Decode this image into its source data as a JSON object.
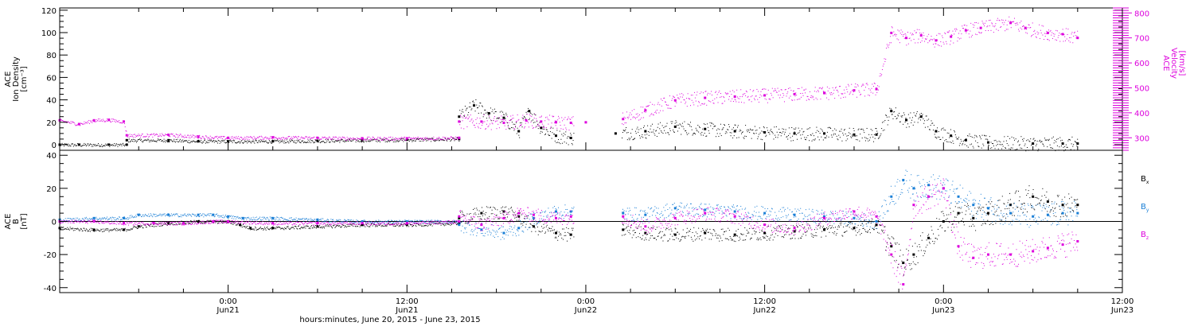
{
  "xaxis": {
    "ticks": [
      {
        "t": 0,
        "l1": "0:00",
        "l2": "Jun21"
      },
      {
        "t": 12,
        "l1": "12:00",
        "l2": "Jun21"
      },
      {
        "t": 24,
        "l1": "0:00",
        "l2": "Jun22"
      },
      {
        "t": 36,
        "l1": "12:00",
        "l2": "Jun22"
      },
      {
        "t": 48,
        "l1": "0:00",
        "l2": "Jun23"
      },
      {
        "t": 60,
        "l1": "12:00",
        "l2": "Jun23"
      }
    ],
    "title": "hours:minutes, June 20, 2015 - June 23, 2015"
  },
  "colors": {
    "black": "#000000",
    "magenta": "#dd00dd",
    "blue": "#1a7fd6"
  },
  "chart_data": [
    {
      "type": "scatter",
      "ylabel_lines": [
        "ACE",
        "Ion Density",
        "[cm⁻³]"
      ],
      "ylim": [
        -5,
        122
      ],
      "yticks": [
        0,
        20,
        40,
        60,
        80,
        100,
        120
      ],
      "y2label_lines": [
        "ACE",
        "Velocity",
        "[km/s]"
      ],
      "y2lim": [
        250,
        820
      ],
      "y2ticks": [
        300,
        400,
        500,
        600,
        700,
        800
      ],
      "series": [
        {
          "axis": "left",
          "color": "black",
          "points": [
            [
              -11.3,
              0
            ],
            [
              -10,
              0
            ],
            [
              -8,
              0
            ],
            [
              -6.8,
              0
            ],
            [
              -6.8,
              4
            ],
            [
              -4,
              4
            ],
            [
              -2,
              3
            ],
            [
              0,
              3
            ],
            [
              3,
              3
            ],
            [
              6,
              3.5
            ],
            [
              9,
              4
            ],
            [
              12,
              4.5
            ],
            [
              15.5,
              5
            ],
            [
              15.5,
              25
            ],
            [
              16.5,
              35
            ],
            [
              17.5,
              28
            ],
            [
              18.5,
              24
            ],
            [
              19.5,
              12
            ],
            [
              20.2,
              30
            ],
            [
              21,
              15
            ],
            [
              22,
              8
            ],
            [
              23,
              6
            ],
            [
              26,
              10
            ],
            [
              28,
              12
            ],
            [
              30,
              16
            ],
            [
              32,
              14
            ],
            [
              34,
              12
            ],
            [
              36,
              11
            ],
            [
              38,
              10
            ],
            [
              40,
              10
            ],
            [
              42,
              9
            ],
            [
              43.5,
              9
            ],
            [
              44.5,
              30
            ],
            [
              45.5,
              22
            ],
            [
              46.5,
              25
            ],
            [
              47.5,
              12
            ],
            [
              48.5,
              8
            ],
            [
              49.5,
              4
            ],
            [
              51,
              2
            ],
            [
              54,
              1
            ],
            [
              56,
              1
            ],
            [
              57,
              1
            ]
          ]
        },
        {
          "axis": "right",
          "color": "magenta",
          "points": [
            [
              -11.3,
              370
            ],
            [
              -10,
              355
            ],
            [
              -9,
              370
            ],
            [
              -8,
              372
            ],
            [
              -7,
              365
            ],
            [
              -6.8,
              310
            ],
            [
              -4,
              312
            ],
            [
              -2,
              305
            ],
            [
              0,
              300
            ],
            [
              3,
              302
            ],
            [
              6,
              300
            ],
            [
              9,
              298
            ],
            [
              12,
              298
            ],
            [
              15.5,
              300
            ],
            [
              15.5,
              365
            ],
            [
              17,
              365
            ],
            [
              18.5,
              360
            ],
            [
              20,
              370
            ],
            [
              21,
              365
            ],
            [
              22,
              362
            ],
            [
              23,
              360
            ],
            [
              24,
              362
            ],
            [
              26.5,
              375
            ],
            [
              28,
              410
            ],
            [
              30,
              450
            ],
            [
              32,
              460
            ],
            [
              34,
              465
            ],
            [
              36,
              470
            ],
            [
              38,
              475
            ],
            [
              40,
              480
            ],
            [
              42,
              490
            ],
            [
              43.5,
              495
            ],
            [
              44.5,
              720
            ],
            [
              45.5,
              700
            ],
            [
              46.5,
              710
            ],
            [
              47.5,
              690
            ],
            [
              48.5,
              705
            ],
            [
              49.5,
              730
            ],
            [
              50.5,
              740
            ],
            [
              52.5,
              760
            ],
            [
              53.5,
              740
            ],
            [
              55,
              720
            ],
            [
              56,
              715
            ],
            [
              57,
              700
            ]
          ]
        }
      ]
    },
    {
      "type": "scatter",
      "ylabel_lines": [
        "ACE",
        "B",
        "[nT]"
      ],
      "ylim": [
        -43,
        43
      ],
      "yticks": [
        -40,
        -20,
        0,
        20,
        40
      ],
      "legend": [
        {
          "label": "Bx",
          "color": "black"
        },
        {
          "label": "By",
          "color": "blue"
        },
        {
          "label": "Bz",
          "color": "magenta"
        }
      ],
      "series": [
        {
          "name": "Bx",
          "color": "black",
          "points": [
            [
              -11.3,
              -4
            ],
            [
              -9,
              -5
            ],
            [
              -7,
              -5
            ],
            [
              -6,
              -3
            ],
            [
              -4,
              -1
            ],
            [
              -2,
              0
            ],
            [
              0,
              0
            ],
            [
              0.8,
              -2
            ],
            [
              1.5,
              -4
            ],
            [
              3,
              -4
            ],
            [
              6,
              -3
            ],
            [
              9,
              -2
            ],
            [
              12,
              -2
            ],
            [
              15.5,
              -1
            ],
            [
              15.5,
              2
            ],
            [
              17,
              5
            ],
            [
              18.5,
              6
            ],
            [
              19.5,
              3
            ],
            [
              20.5,
              -3
            ],
            [
              22,
              -7
            ],
            [
              23,
              -8
            ],
            [
              26.5,
              -5
            ],
            [
              28,
              -7
            ],
            [
              30,
              -8
            ],
            [
              32,
              -7
            ],
            [
              34,
              -8
            ],
            [
              36,
              -7
            ],
            [
              38,
              -6
            ],
            [
              40,
              -5
            ],
            [
              42,
              -4
            ],
            [
              43.5,
              -2
            ],
            [
              44.5,
              -15
            ],
            [
              45.3,
              -25
            ],
            [
              46,
              -20
            ],
            [
              47,
              -10
            ],
            [
              48,
              0
            ],
            [
              49,
              5
            ],
            [
              50,
              2
            ],
            [
              51,
              5
            ],
            [
              52.5,
              10
            ],
            [
              54,
              15
            ],
            [
              55,
              12
            ],
            [
              56,
              10
            ],
            [
              57,
              10
            ]
          ]
        },
        {
          "name": "By",
          "color": "blue",
          "points": [
            [
              -11.3,
              1
            ],
            [
              -9,
              2
            ],
            [
              -7,
              2
            ],
            [
              -6,
              4
            ],
            [
              -4,
              4
            ],
            [
              -2,
              4
            ],
            [
              -1,
              4
            ],
            [
              0,
              3
            ],
            [
              1,
              2
            ],
            [
              3,
              2
            ],
            [
              6,
              1
            ],
            [
              9,
              0
            ],
            [
              12,
              0
            ],
            [
              15.5,
              0
            ],
            [
              15.5,
              -2
            ],
            [
              17,
              -5
            ],
            [
              18.5,
              -7
            ],
            [
              19.5,
              -4
            ],
            [
              20.5,
              2
            ],
            [
              22,
              6
            ],
            [
              23,
              6
            ],
            [
              26.5,
              5
            ],
            [
              28,
              4
            ],
            [
              30,
              8
            ],
            [
              32,
              7
            ],
            [
              34,
              6
            ],
            [
              36,
              5
            ],
            [
              38,
              4
            ],
            [
              40,
              3
            ],
            [
              42,
              2
            ],
            [
              43.5,
              0
            ],
            [
              44.5,
              15
            ],
            [
              45.3,
              25
            ],
            [
              46,
              20
            ],
            [
              47,
              22
            ],
            [
              48,
              20
            ],
            [
              49,
              15
            ],
            [
              50,
              10
            ],
            [
              51,
              8
            ],
            [
              52.5,
              5
            ],
            [
              54,
              3
            ],
            [
              55,
              4
            ],
            [
              56,
              5
            ],
            [
              57,
              5
            ]
          ]
        },
        {
          "name": "Bz",
          "color": "magenta",
          "points": [
            [
              -11.3,
              0
            ],
            [
              -9,
              0
            ],
            [
              -7,
              -1
            ],
            [
              -5,
              -1
            ],
            [
              -3,
              -1
            ],
            [
              -1,
              0
            ],
            [
              0,
              0
            ],
            [
              3,
              -1
            ],
            [
              6,
              -1
            ],
            [
              9,
              -1
            ],
            [
              12,
              -1
            ],
            [
              15.5,
              0
            ],
            [
              15.5,
              3
            ],
            [
              17,
              -2
            ],
            [
              18.5,
              2
            ],
            [
              19.5,
              5
            ],
            [
              20.5,
              4
            ],
            [
              22,
              2
            ],
            [
              23,
              3
            ],
            [
              26.5,
              3
            ],
            [
              28,
              -3
            ],
            [
              30,
              2
            ],
            [
              32,
              5
            ],
            [
              34,
              3
            ],
            [
              36,
              -2
            ],
            [
              38,
              -4
            ],
            [
              40,
              2
            ],
            [
              42,
              6
            ],
            [
              43.5,
              3
            ],
            [
              44.5,
              -20
            ],
            [
              45.3,
              -38
            ],
            [
              46,
              10
            ],
            [
              47,
              15
            ],
            [
              48,
              20
            ],
            [
              49,
              -15
            ],
            [
              50,
              -22
            ],
            [
              51,
              -20
            ],
            [
              52.5,
              -20
            ],
            [
              54,
              -18
            ],
            [
              55,
              -16
            ],
            [
              56,
              -14
            ],
            [
              57,
              -12
            ]
          ]
        }
      ]
    }
  ]
}
